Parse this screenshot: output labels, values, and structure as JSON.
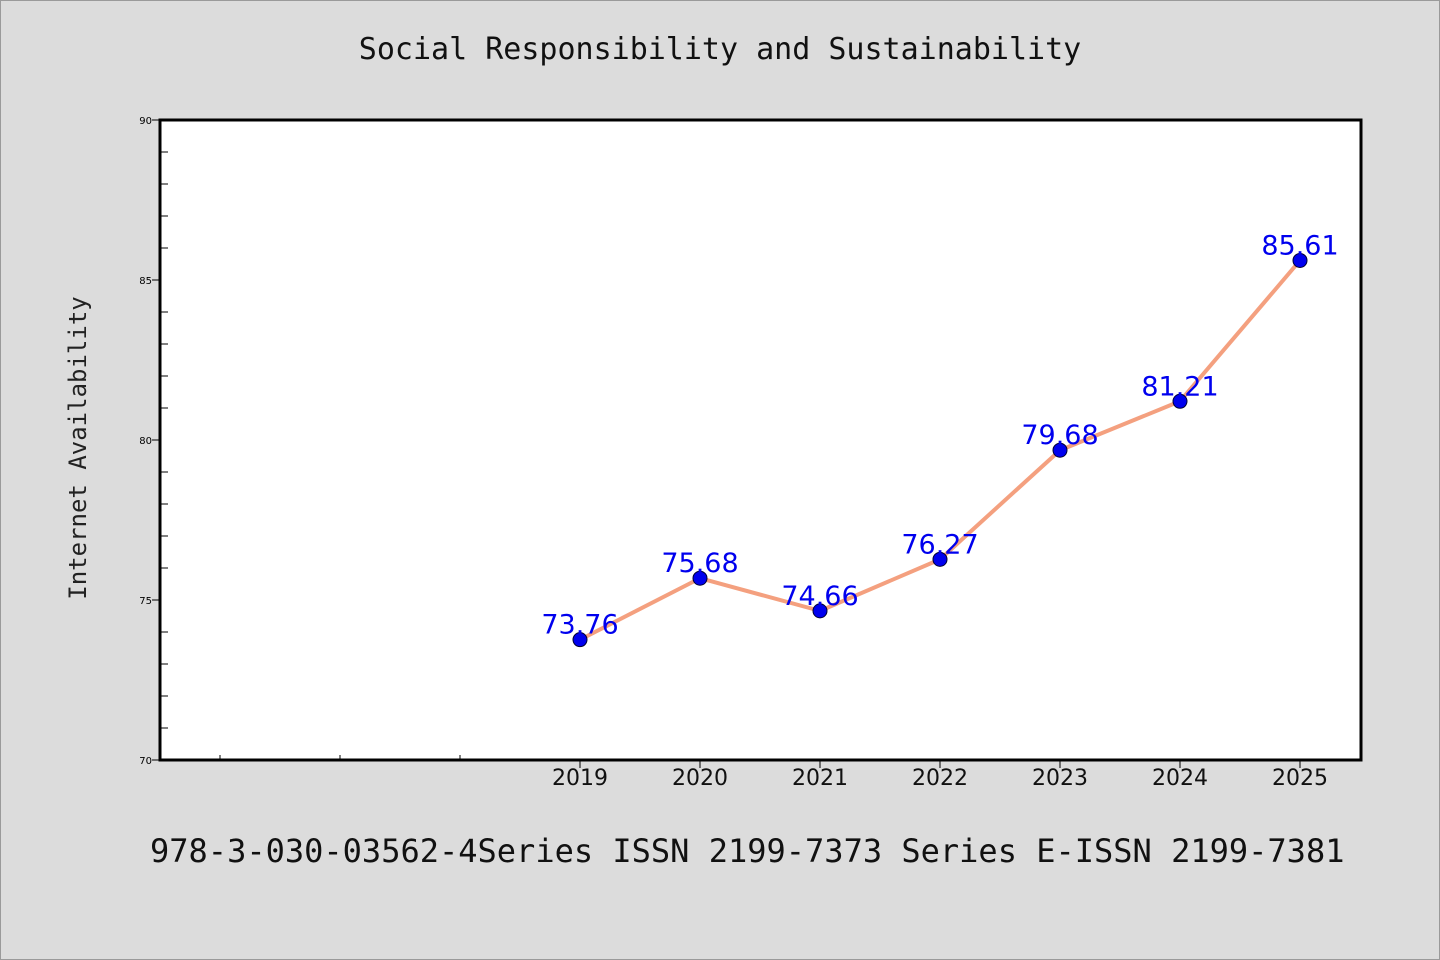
{
  "chart_data": {
    "type": "line",
    "title": "Social Responsibility and Sustainability",
    "xlabel": "",
    "ylabel": "Internet Availability",
    "categories": [
      "2019",
      "2020",
      "2021",
      "2022",
      "2023",
      "2024",
      "2025"
    ],
    "series": [
      {
        "values": [
          73.76,
          75.68,
          74.66,
          76.27,
          79.68,
          81.21,
          85.61
        ]
      }
    ],
    "ylim": [
      70,
      90
    ],
    "y_ticks": [
      70,
      75,
      80,
      85,
      90
    ],
    "grid": false,
    "legend": "none",
    "line_color": "#f4a07f",
    "marker_color": "#0000ee",
    "label_color": "#0000ee"
  },
  "footer": {
    "text": "978-3-030-03562-4Series ISSN 2199-7373 Series E-ISSN 2199-7381"
  },
  "colors": {
    "background": "#dcdcdc",
    "plot_background": "#ffffff"
  }
}
